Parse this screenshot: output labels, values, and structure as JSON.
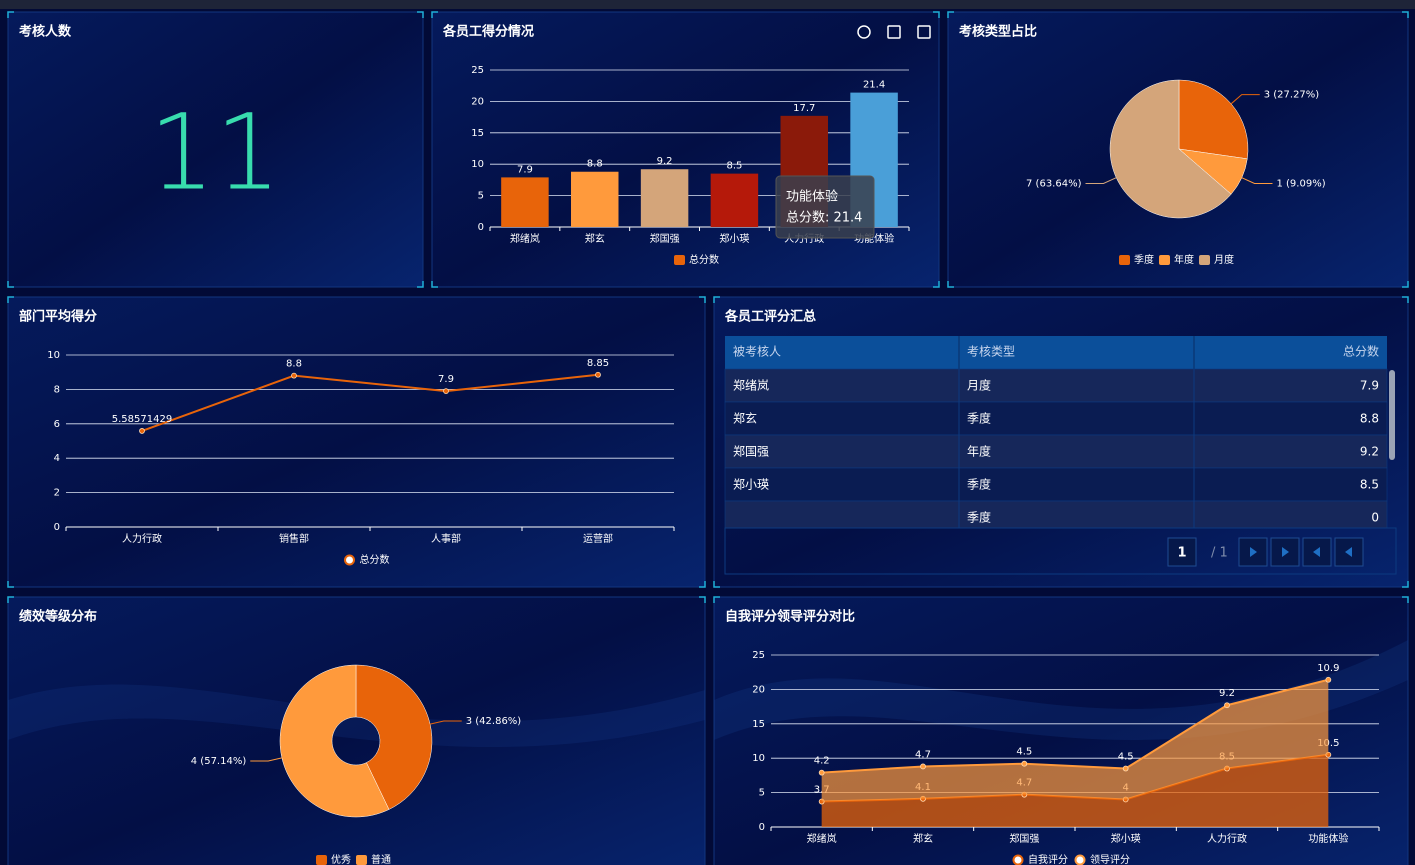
{
  "kpi": {
    "title": "考核人数",
    "value": 11
  },
  "table": {
    "title": "各员工评分汇总",
    "columns": [
      "被考核人",
      "考核类型",
      "总分数"
    ],
    "rows": [
      [
        "郑绪岚",
        "月度",
        7.9
      ],
      [
        "郑玄",
        "季度",
        8.8
      ],
      [
        "郑国强",
        "年度",
        9.2
      ],
      [
        "郑小瑛",
        "季度",
        8.5
      ],
      [
        null,
        "季度",
        0
      ]
    ],
    "pager": {
      "page": 1,
      "pages_label": "/ 1"
    }
  },
  "chart_data": [
    {
      "type": "bar",
      "title": "各员工得分情况",
      "categories": [
        "郑绪岚",
        "郑玄",
        "郑国强",
        "郑小瑛",
        "人力行政",
        "功能体验"
      ],
      "series": [
        {
          "name": "总分数",
          "color": "#e8640a",
          "values": [
            7.9,
            8.8,
            9.2,
            8.5,
            17.7,
            21.4
          ]
        }
      ],
      "bar_colors": [
        "#e8640a",
        "#ff9a3c",
        "#d4a57a",
        "#b5190a",
        "#8b1a0a",
        "#4a9fd8"
      ],
      "ylim": [
        0,
        25
      ],
      "yticks": [
        0,
        5,
        10,
        15,
        20,
        25
      ],
      "grid": true,
      "tooltip": {
        "title": "功能体验",
        "text": "总分数: 21.4"
      }
    },
    {
      "type": "pie",
      "title": "考核类型占比",
      "categories": [
        "季度",
        "年度",
        "月度"
      ],
      "values": [
        3,
        1,
        7
      ],
      "value_labels": [
        "3 (27.27%)",
        "1 (9.09%)",
        "7 (63.64%)"
      ],
      "colors": [
        "#e8640a",
        "#ff9a3c",
        "#d4a57a"
      ]
    },
    {
      "type": "line",
      "title": "部门平均得分",
      "categories": [
        "人力行政",
        "销售部",
        "人事部",
        "运营部"
      ],
      "series": [
        {
          "name": "总分数",
          "color": "#e8640a",
          "values": [
            5.58571429,
            8.8,
            7.9,
            8.85
          ]
        }
      ],
      "ylim": [
        0,
        10
      ],
      "yticks": [
        0,
        2,
        4,
        6,
        8,
        10
      ],
      "grid": true
    },
    {
      "type": "donut",
      "title": "绩效等级分布",
      "categories": [
        "优秀",
        "普通"
      ],
      "values": [
        3,
        4
      ],
      "value_labels": [
        "3 (42.86%)",
        "4 (57.14%)"
      ],
      "colors": [
        "#e8640a",
        "#ff9a3c"
      ]
    },
    {
      "type": "area",
      "title": "自我评分领导评分对比",
      "stacked": true,
      "categories": [
        "郑绪岚",
        "郑玄",
        "郑国强",
        "郑小瑛",
        "人力行政",
        "功能体验"
      ],
      "series": [
        {
          "name": "自我评分",
          "color": "#e8640a",
          "values": [
            3.7,
            4.1,
            4.7,
            4,
            8.5,
            10.5
          ]
        },
        {
          "name": "领导评分",
          "color": "#ff9a3c",
          "values": [
            4.2,
            4.7,
            4.5,
            4.5,
            9.2,
            10.9
          ]
        }
      ],
      "ylim": [
        0,
        25
      ],
      "yticks": [
        0,
        5,
        10,
        15,
        20,
        25
      ],
      "grid": true
    }
  ]
}
